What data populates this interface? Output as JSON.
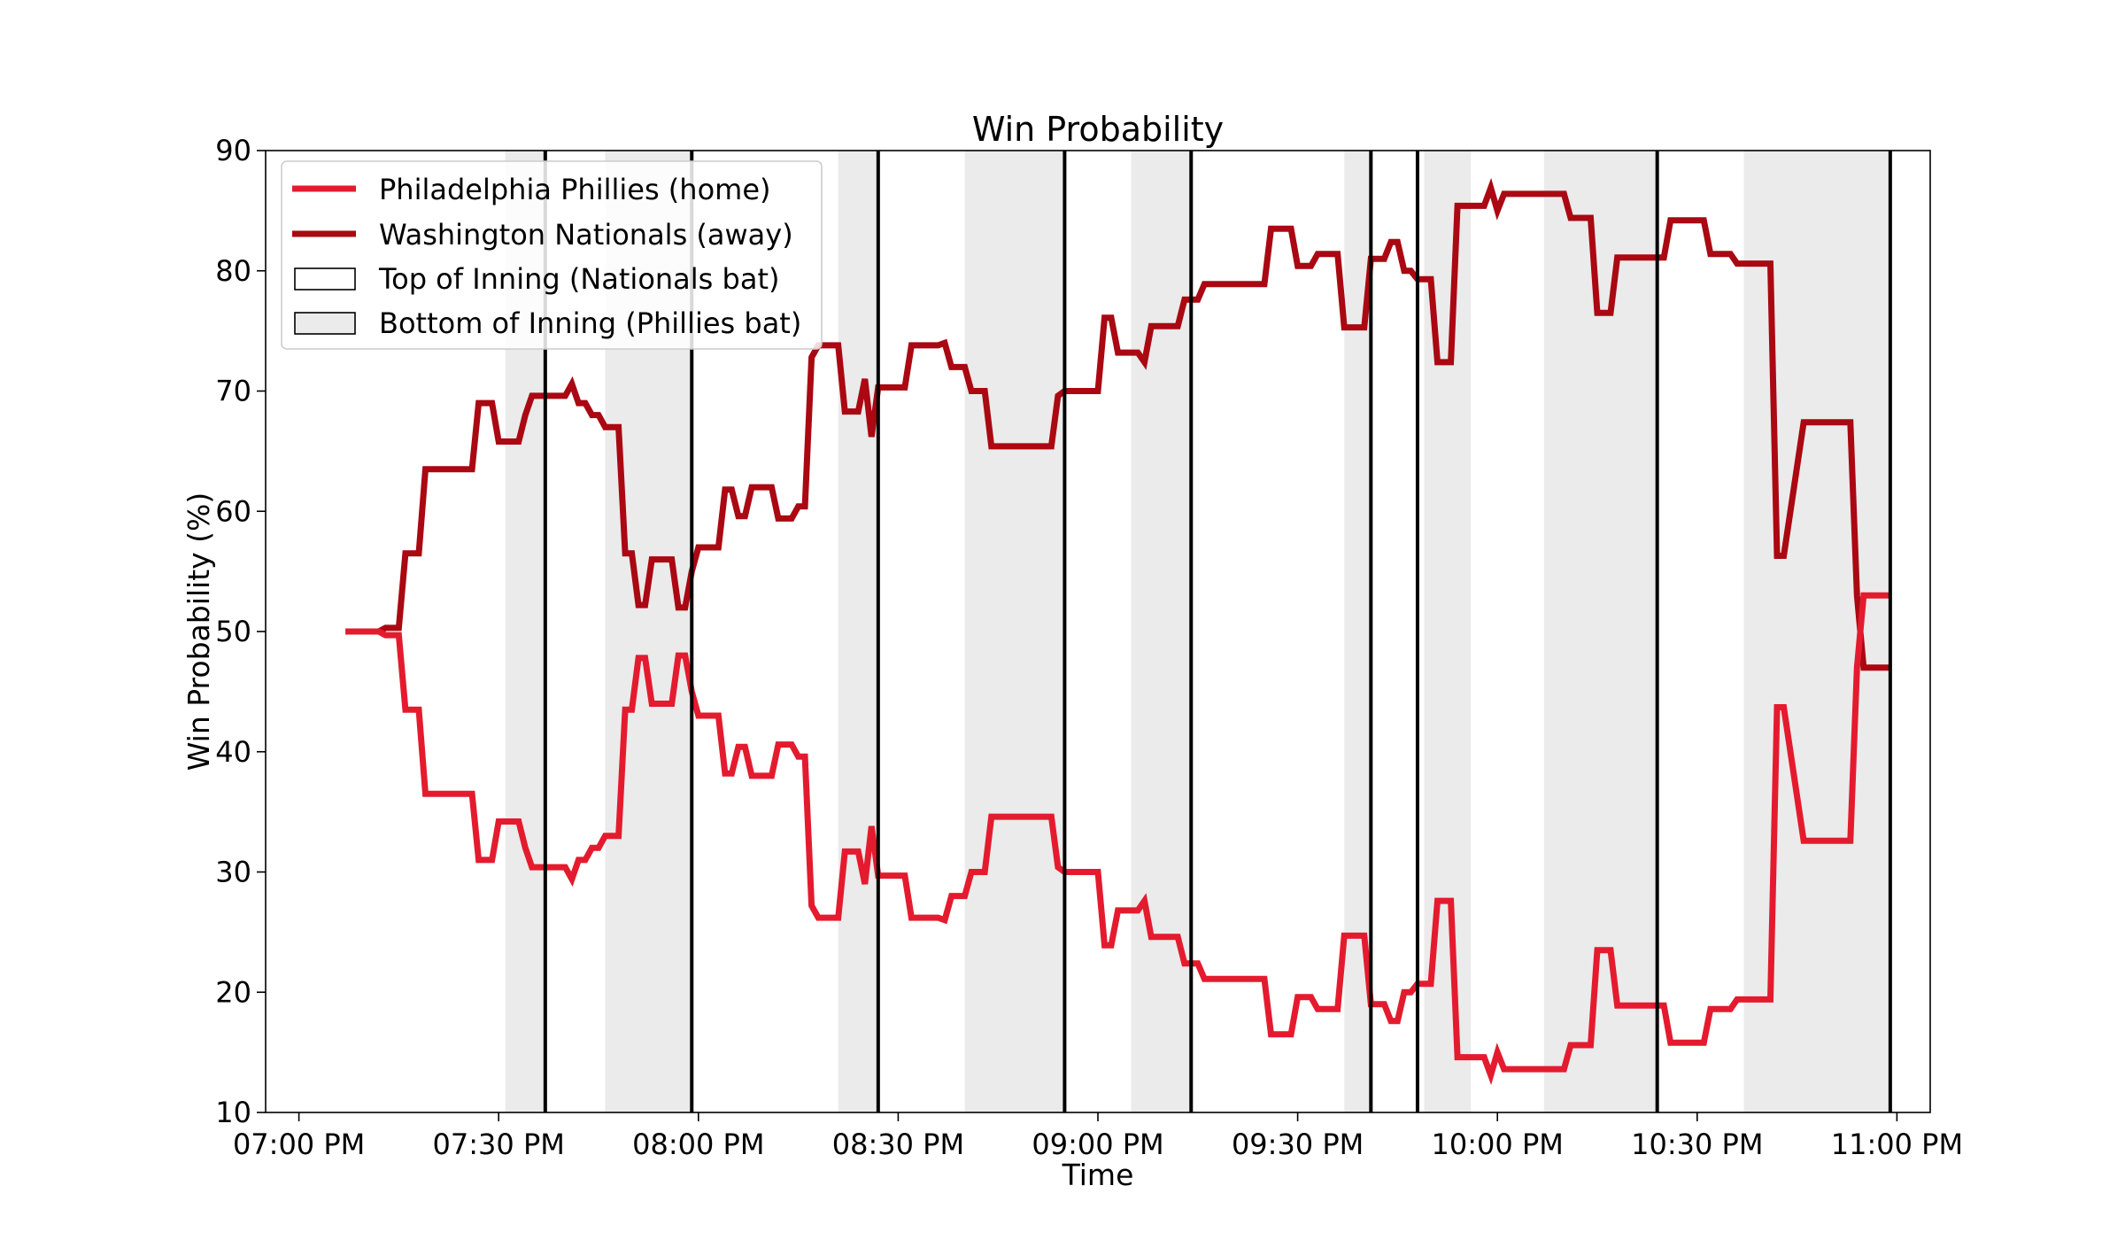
{
  "chart_data": {
    "type": "line",
    "title": "Win Probability",
    "xlabel": "Time",
    "ylabel": "Win Probability (%)",
    "ylim": [
      10,
      90
    ],
    "yticks": [
      10,
      20,
      30,
      40,
      50,
      60,
      70,
      80,
      90
    ],
    "xlim": [
      "06:55 PM",
      "11:05 PM"
    ],
    "xticks": [
      "07:00 PM",
      "07:30 PM",
      "08:00 PM",
      "08:30 PM",
      "09:00 PM",
      "09:30 PM",
      "10:00 PM",
      "10:30 PM",
      "11:00 PM"
    ],
    "grid": false,
    "legend_position": "top-left",
    "colors": {
      "home": "#e41b2e",
      "away": "#aa0812",
      "top_inning": "#ffffff",
      "bottom_inning": "#ebebeb",
      "inning_boundary": "#000000"
    },
    "legend": {
      "home": "Philadelphia Phillies (home)",
      "away": "Washington Nationals (away)",
      "top_inning": "Top of Inning (Nationals bat)",
      "bottom_inning": "Bottom of Inning (Phillies bat)"
    },
    "inning_boundaries": [
      "07:37 PM",
      "07:59 PM",
      "08:27 PM",
      "08:55 PM",
      "09:14 PM",
      "09:41 PM",
      "09:48 PM",
      "10:24 PM",
      "10:59 PM"
    ],
    "bottom_inning_intervals": [
      [
        "07:31 PM",
        "07:37 PM"
      ],
      [
        "07:46 PM",
        "07:59 PM"
      ],
      [
        "08:21 PM",
        "08:27 PM"
      ],
      [
        "08:40 PM",
        "08:55 PM"
      ],
      [
        "09:05 PM",
        "09:14 PM"
      ],
      [
        "09:37 PM",
        "09:41 PM"
      ],
      [
        "09:49 PM",
        "09:56 PM"
      ],
      [
        "10:07 PM",
        "10:24 PM"
      ],
      [
        "10:37 PM",
        "10:59 PM"
      ]
    ],
    "series": [
      {
        "name": "Washington Nationals (away)",
        "points": [
          [
            "07:07 PM",
            50.0
          ],
          [
            "07:12 PM",
            50.0
          ],
          [
            "07:13 PM",
            50.3
          ],
          [
            "07:15 PM",
            50.3
          ],
          [
            "07:16 PM",
            56.5
          ],
          [
            "07:18 PM",
            56.5
          ],
          [
            "07:19 PM",
            63.5
          ],
          [
            "07:26 PM",
            63.5
          ],
          [
            "07:27 PM",
            69.0
          ],
          [
            "07:29 PM",
            69.0
          ],
          [
            "07:30 PM",
            65.8
          ],
          [
            "07:33 PM",
            65.8
          ],
          [
            "07:34 PM",
            68.0
          ],
          [
            "07:35 PM",
            69.6
          ],
          [
            "07:40 PM",
            69.6
          ],
          [
            "07:41 PM",
            70.6
          ],
          [
            "07:42 PM",
            69.0
          ],
          [
            "07:43 PM",
            69.0
          ],
          [
            "07:44 PM",
            68.0
          ],
          [
            "07:45 PM",
            68.0
          ],
          [
            "07:46 PM",
            67.0
          ],
          [
            "07:48 PM",
            67.0
          ],
          [
            "07:49 PM",
            56.5
          ],
          [
            "07:50 PM",
            56.5
          ],
          [
            "07:51 PM",
            52.2
          ],
          [
            "07:52 PM",
            52.2
          ],
          [
            "07:53 PM",
            56.0
          ],
          [
            "07:56 PM",
            56.0
          ],
          [
            "07:57 PM",
            52.0
          ],
          [
            "07:58 PM",
            52.0
          ],
          [
            "07:59 PM",
            55.0
          ],
          [
            "08:00 PM",
            57.0
          ],
          [
            "08:03 PM",
            57.0
          ],
          [
            "08:04 PM",
            61.8
          ],
          [
            "08:05 PM",
            61.8
          ],
          [
            "08:06 PM",
            59.6
          ],
          [
            "08:07 PM",
            59.6
          ],
          [
            "08:08 PM",
            62.0
          ],
          [
            "08:11 PM",
            62.0
          ],
          [
            "08:12 PM",
            59.4
          ],
          [
            "08:14 PM",
            59.4
          ],
          [
            "08:15 PM",
            60.4
          ],
          [
            "08:16 PM",
            60.4
          ],
          [
            "08:17 PM",
            72.8
          ],
          [
            "08:18 PM",
            73.8
          ],
          [
            "08:21 PM",
            73.8
          ],
          [
            "08:22 PM",
            68.3
          ],
          [
            "08:24 PM",
            68.3
          ],
          [
            "08:25 PM",
            71.0
          ],
          [
            "08:26 PM",
            66.2
          ],
          [
            "08:27 PM",
            70.3
          ],
          [
            "08:31 PM",
            70.3
          ],
          [
            "08:32 PM",
            73.8
          ],
          [
            "08:36 PM",
            73.8
          ],
          [
            "08:37 PM",
            74.0
          ],
          [
            "08:38 PM",
            72.0
          ],
          [
            "08:40 PM",
            72.0
          ],
          [
            "08:41 PM",
            70.0
          ],
          [
            "08:43 PM",
            70.0
          ],
          [
            "08:44 PM",
            65.4
          ],
          [
            "08:53 PM",
            65.4
          ],
          [
            "08:54 PM",
            69.6
          ],
          [
            "08:55 PM",
            70.0
          ],
          [
            "09:00 PM",
            70.0
          ],
          [
            "09:01 PM",
            76.1
          ],
          [
            "09:02 PM",
            76.1
          ],
          [
            "09:03 PM",
            73.2
          ],
          [
            "09:06 PM",
            73.2
          ],
          [
            "09:07 PM",
            72.4
          ],
          [
            "09:08 PM",
            75.4
          ],
          [
            "09:12 PM",
            75.4
          ],
          [
            "09:13 PM",
            77.6
          ],
          [
            "09:15 PM",
            77.6
          ],
          [
            "09:16 PM",
            78.9
          ],
          [
            "09:25 PM",
            78.9
          ],
          [
            "09:26 PM",
            83.5
          ],
          [
            "09:29 PM",
            83.5
          ],
          [
            "09:30 PM",
            80.4
          ],
          [
            "09:32 PM",
            80.4
          ],
          [
            "09:33 PM",
            81.4
          ],
          [
            "09:36 PM",
            81.4
          ],
          [
            "09:37 PM",
            75.3
          ],
          [
            "09:40 PM",
            75.3
          ],
          [
            "09:41 PM",
            81.0
          ],
          [
            "09:43 PM",
            81.0
          ],
          [
            "09:44 PM",
            82.4
          ],
          [
            "09:45 PM",
            82.4
          ],
          [
            "09:46 PM",
            80.0
          ],
          [
            "09:47 PM",
            80.0
          ],
          [
            "09:48 PM",
            79.3
          ],
          [
            "09:50 PM",
            79.3
          ],
          [
            "09:51 PM",
            72.4
          ],
          [
            "09:52 PM",
            72.4
          ],
          [
            "09:53 PM",
            72.4
          ],
          [
            "09:54 PM",
            85.4
          ],
          [
            "09:58 PM",
            85.4
          ],
          [
            "09:59 PM",
            86.9
          ],
          [
            "10:00 PM",
            85.0
          ],
          [
            "10:01 PM",
            86.4
          ],
          [
            "10:10 PM",
            86.4
          ],
          [
            "10:11 PM",
            84.4
          ],
          [
            "10:14 PM",
            84.4
          ],
          [
            "10:15 PM",
            76.5
          ],
          [
            "10:17 PM",
            76.5
          ],
          [
            "10:18 PM",
            81.1
          ],
          [
            "10:25 PM",
            81.1
          ],
          [
            "10:26 PM",
            84.2
          ],
          [
            "10:31 PM",
            84.2
          ],
          [
            "10:32 PM",
            81.4
          ],
          [
            "10:35 PM",
            81.4
          ],
          [
            "10:36 PM",
            80.6
          ],
          [
            "10:41 PM",
            80.6
          ],
          [
            "10:42 PM",
            56.3
          ],
          [
            "10:43 PM",
            56.3
          ],
          [
            "10:46 PM",
            67.4
          ],
          [
            "10:53 PM",
            67.4
          ],
          [
            "10:54 PM",
            53.0
          ],
          [
            "10:55 PM",
            47.0
          ],
          [
            "10:59 PM",
            47.0
          ]
        ]
      },
      {
        "name": "Philadelphia Phillies (home)",
        "points": [
          [
            "07:07 PM",
            50.0
          ],
          [
            "07:12 PM",
            50.0
          ],
          [
            "07:13 PM",
            49.7
          ],
          [
            "07:15 PM",
            49.7
          ],
          [
            "07:16 PM",
            43.5
          ],
          [
            "07:18 PM",
            43.5
          ],
          [
            "07:19 PM",
            36.5
          ],
          [
            "07:26 PM",
            36.5
          ],
          [
            "07:27 PM",
            31.0
          ],
          [
            "07:29 PM",
            31.0
          ],
          [
            "07:30 PM",
            34.2
          ],
          [
            "07:33 PM",
            34.2
          ],
          [
            "07:34 PM",
            32.0
          ],
          [
            "07:35 PM",
            30.4
          ],
          [
            "07:40 PM",
            30.4
          ],
          [
            "07:41 PM",
            29.4
          ],
          [
            "07:42 PM",
            31.0
          ],
          [
            "07:43 PM",
            31.0
          ],
          [
            "07:44 PM",
            32.0
          ],
          [
            "07:45 PM",
            32.0
          ],
          [
            "07:46 PM",
            33.0
          ],
          [
            "07:48 PM",
            33.0
          ],
          [
            "07:49 PM",
            43.5
          ],
          [
            "07:50 PM",
            43.5
          ],
          [
            "07:51 PM",
            47.8
          ],
          [
            "07:52 PM",
            47.8
          ],
          [
            "07:53 PM",
            44.0
          ],
          [
            "07:56 PM",
            44.0
          ],
          [
            "07:57 PM",
            48.0
          ],
          [
            "07:58 PM",
            48.0
          ],
          [
            "07:59 PM",
            45.0
          ],
          [
            "08:00 PM",
            43.0
          ],
          [
            "08:03 PM",
            43.0
          ],
          [
            "08:04 PM",
            38.2
          ],
          [
            "08:05 PM",
            38.2
          ],
          [
            "08:06 PM",
            40.4
          ],
          [
            "08:07 PM",
            40.4
          ],
          [
            "08:08 PM",
            38.0
          ],
          [
            "08:11 PM",
            38.0
          ],
          [
            "08:12 PM",
            40.6
          ],
          [
            "08:14 PM",
            40.6
          ],
          [
            "08:15 PM",
            39.6
          ],
          [
            "08:16 PM",
            39.6
          ],
          [
            "08:17 PM",
            27.2
          ],
          [
            "08:18 PM",
            26.2
          ],
          [
            "08:21 PM",
            26.2
          ],
          [
            "08:22 PM",
            31.7
          ],
          [
            "08:24 PM",
            31.7
          ],
          [
            "08:25 PM",
            29.0
          ],
          [
            "08:26 PM",
            33.8
          ],
          [
            "08:27 PM",
            29.7
          ],
          [
            "08:31 PM",
            29.7
          ],
          [
            "08:32 PM",
            26.2
          ],
          [
            "08:36 PM",
            26.2
          ],
          [
            "08:37 PM",
            26.0
          ],
          [
            "08:38 PM",
            28.0
          ],
          [
            "08:40 PM",
            28.0
          ],
          [
            "08:41 PM",
            30.0
          ],
          [
            "08:43 PM",
            30.0
          ],
          [
            "08:44 PM",
            34.6
          ],
          [
            "08:53 PM",
            34.6
          ],
          [
            "08:54 PM",
            30.4
          ],
          [
            "08:55 PM",
            30.0
          ],
          [
            "09:00 PM",
            30.0
          ],
          [
            "09:01 PM",
            23.9
          ],
          [
            "09:02 PM",
            23.9
          ],
          [
            "09:03 PM",
            26.8
          ],
          [
            "09:06 PM",
            26.8
          ],
          [
            "09:07 PM",
            27.6
          ],
          [
            "09:08 PM",
            24.6
          ],
          [
            "09:12 PM",
            24.6
          ],
          [
            "09:13 PM",
            22.4
          ],
          [
            "09:15 PM",
            22.4
          ],
          [
            "09:16 PM",
            21.1
          ],
          [
            "09:25 PM",
            21.1
          ],
          [
            "09:26 PM",
            16.5
          ],
          [
            "09:29 PM",
            16.5
          ],
          [
            "09:30 PM",
            19.6
          ],
          [
            "09:32 PM",
            19.6
          ],
          [
            "09:33 PM",
            18.6
          ],
          [
            "09:36 PM",
            18.6
          ],
          [
            "09:37 PM",
            24.7
          ],
          [
            "09:40 PM",
            24.7
          ],
          [
            "09:41 PM",
            19.0
          ],
          [
            "09:43 PM",
            19.0
          ],
          [
            "09:44 PM",
            17.6
          ],
          [
            "09:45 PM",
            17.6
          ],
          [
            "09:46 PM",
            20.0
          ],
          [
            "09:47 PM",
            20.0
          ],
          [
            "09:48 PM",
            20.7
          ],
          [
            "09:50 PM",
            20.7
          ],
          [
            "09:51 PM",
            27.6
          ],
          [
            "09:52 PM",
            27.6
          ],
          [
            "09:53 PM",
            27.6
          ],
          [
            "09:54 PM",
            14.6
          ],
          [
            "09:58 PM",
            14.6
          ],
          [
            "09:59 PM",
            13.1
          ],
          [
            "10:00 PM",
            15.0
          ],
          [
            "10:01 PM",
            13.6
          ],
          [
            "10:10 PM",
            13.6
          ],
          [
            "10:11 PM",
            15.6
          ],
          [
            "10:14 PM",
            15.6
          ],
          [
            "10:15 PM",
            23.5
          ],
          [
            "10:17 PM",
            23.5
          ],
          [
            "10:18 PM",
            18.9
          ],
          [
            "10:25 PM",
            18.9
          ],
          [
            "10:26 PM",
            15.8
          ],
          [
            "10:31 PM",
            15.8
          ],
          [
            "10:32 PM",
            18.6
          ],
          [
            "10:35 PM",
            18.6
          ],
          [
            "10:36 PM",
            19.4
          ],
          [
            "10:41 PM",
            19.4
          ],
          [
            "10:42 PM",
            43.7
          ],
          [
            "10:43 PM",
            43.7
          ],
          [
            "10:46 PM",
            32.6
          ],
          [
            "10:53 PM",
            32.6
          ],
          [
            "10:54 PM",
            47.0
          ],
          [
            "10:55 PM",
            53.0
          ],
          [
            "10:59 PM",
            53.0
          ]
        ]
      }
    ]
  }
}
